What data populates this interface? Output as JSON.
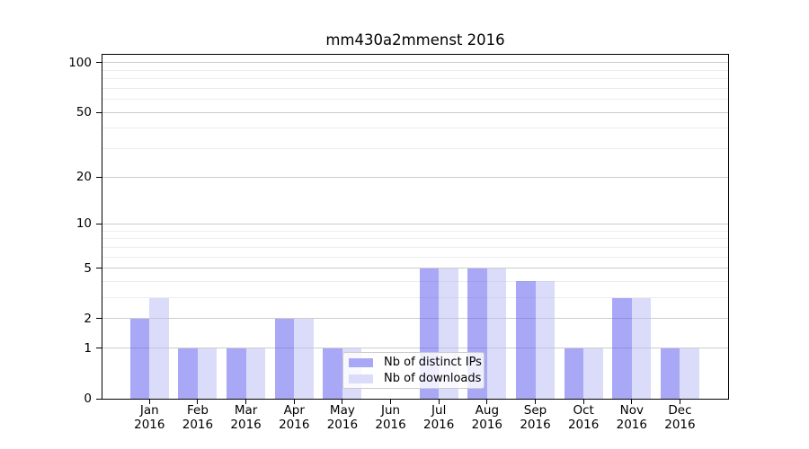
{
  "title": "mm430a2mmenst 2016",
  "chart_data": {
    "type": "bar",
    "title": "mm430a2mmenst 2016",
    "categories": [
      "Jan",
      "Feb",
      "Mar",
      "Apr",
      "May",
      "Jun",
      "Jul",
      "Aug",
      "Sep",
      "Oct",
      "Nov",
      "Dec"
    ],
    "category_year": "2016",
    "series": [
      {
        "name": "Nb of distinct IPs",
        "fill": "rgba(96,96,240,0.55)",
        "swatch": "#a8a8f7",
        "values": [
          2,
          1,
          1,
          2,
          1,
          0,
          5,
          5,
          4,
          1,
          3,
          1
        ]
      },
      {
        "name": "Nb of downloads",
        "fill": "rgba(190,190,246,0.55)",
        "swatch": "#dbdbfa",
        "values": [
          3,
          1,
          1,
          2,
          1,
          0,
          5,
          5,
          4,
          1,
          3,
          1
        ]
      }
    ],
    "yscale": "log1p",
    "ylim": [
      0,
      111
    ],
    "yticks_major": [
      0,
      1,
      2,
      5,
      10,
      20,
      50,
      100
    ],
    "yticks_minor": [
      3,
      4,
      6,
      7,
      8,
      9,
      30,
      40,
      60,
      70,
      80,
      90
    ],
    "grid": "both",
    "legend_position": "lower center",
    "colors": {
      "major_grid": "#cccccc",
      "minor_grid": "#ececec",
      "spine": "#000000",
      "background": "#ffffff"
    }
  }
}
